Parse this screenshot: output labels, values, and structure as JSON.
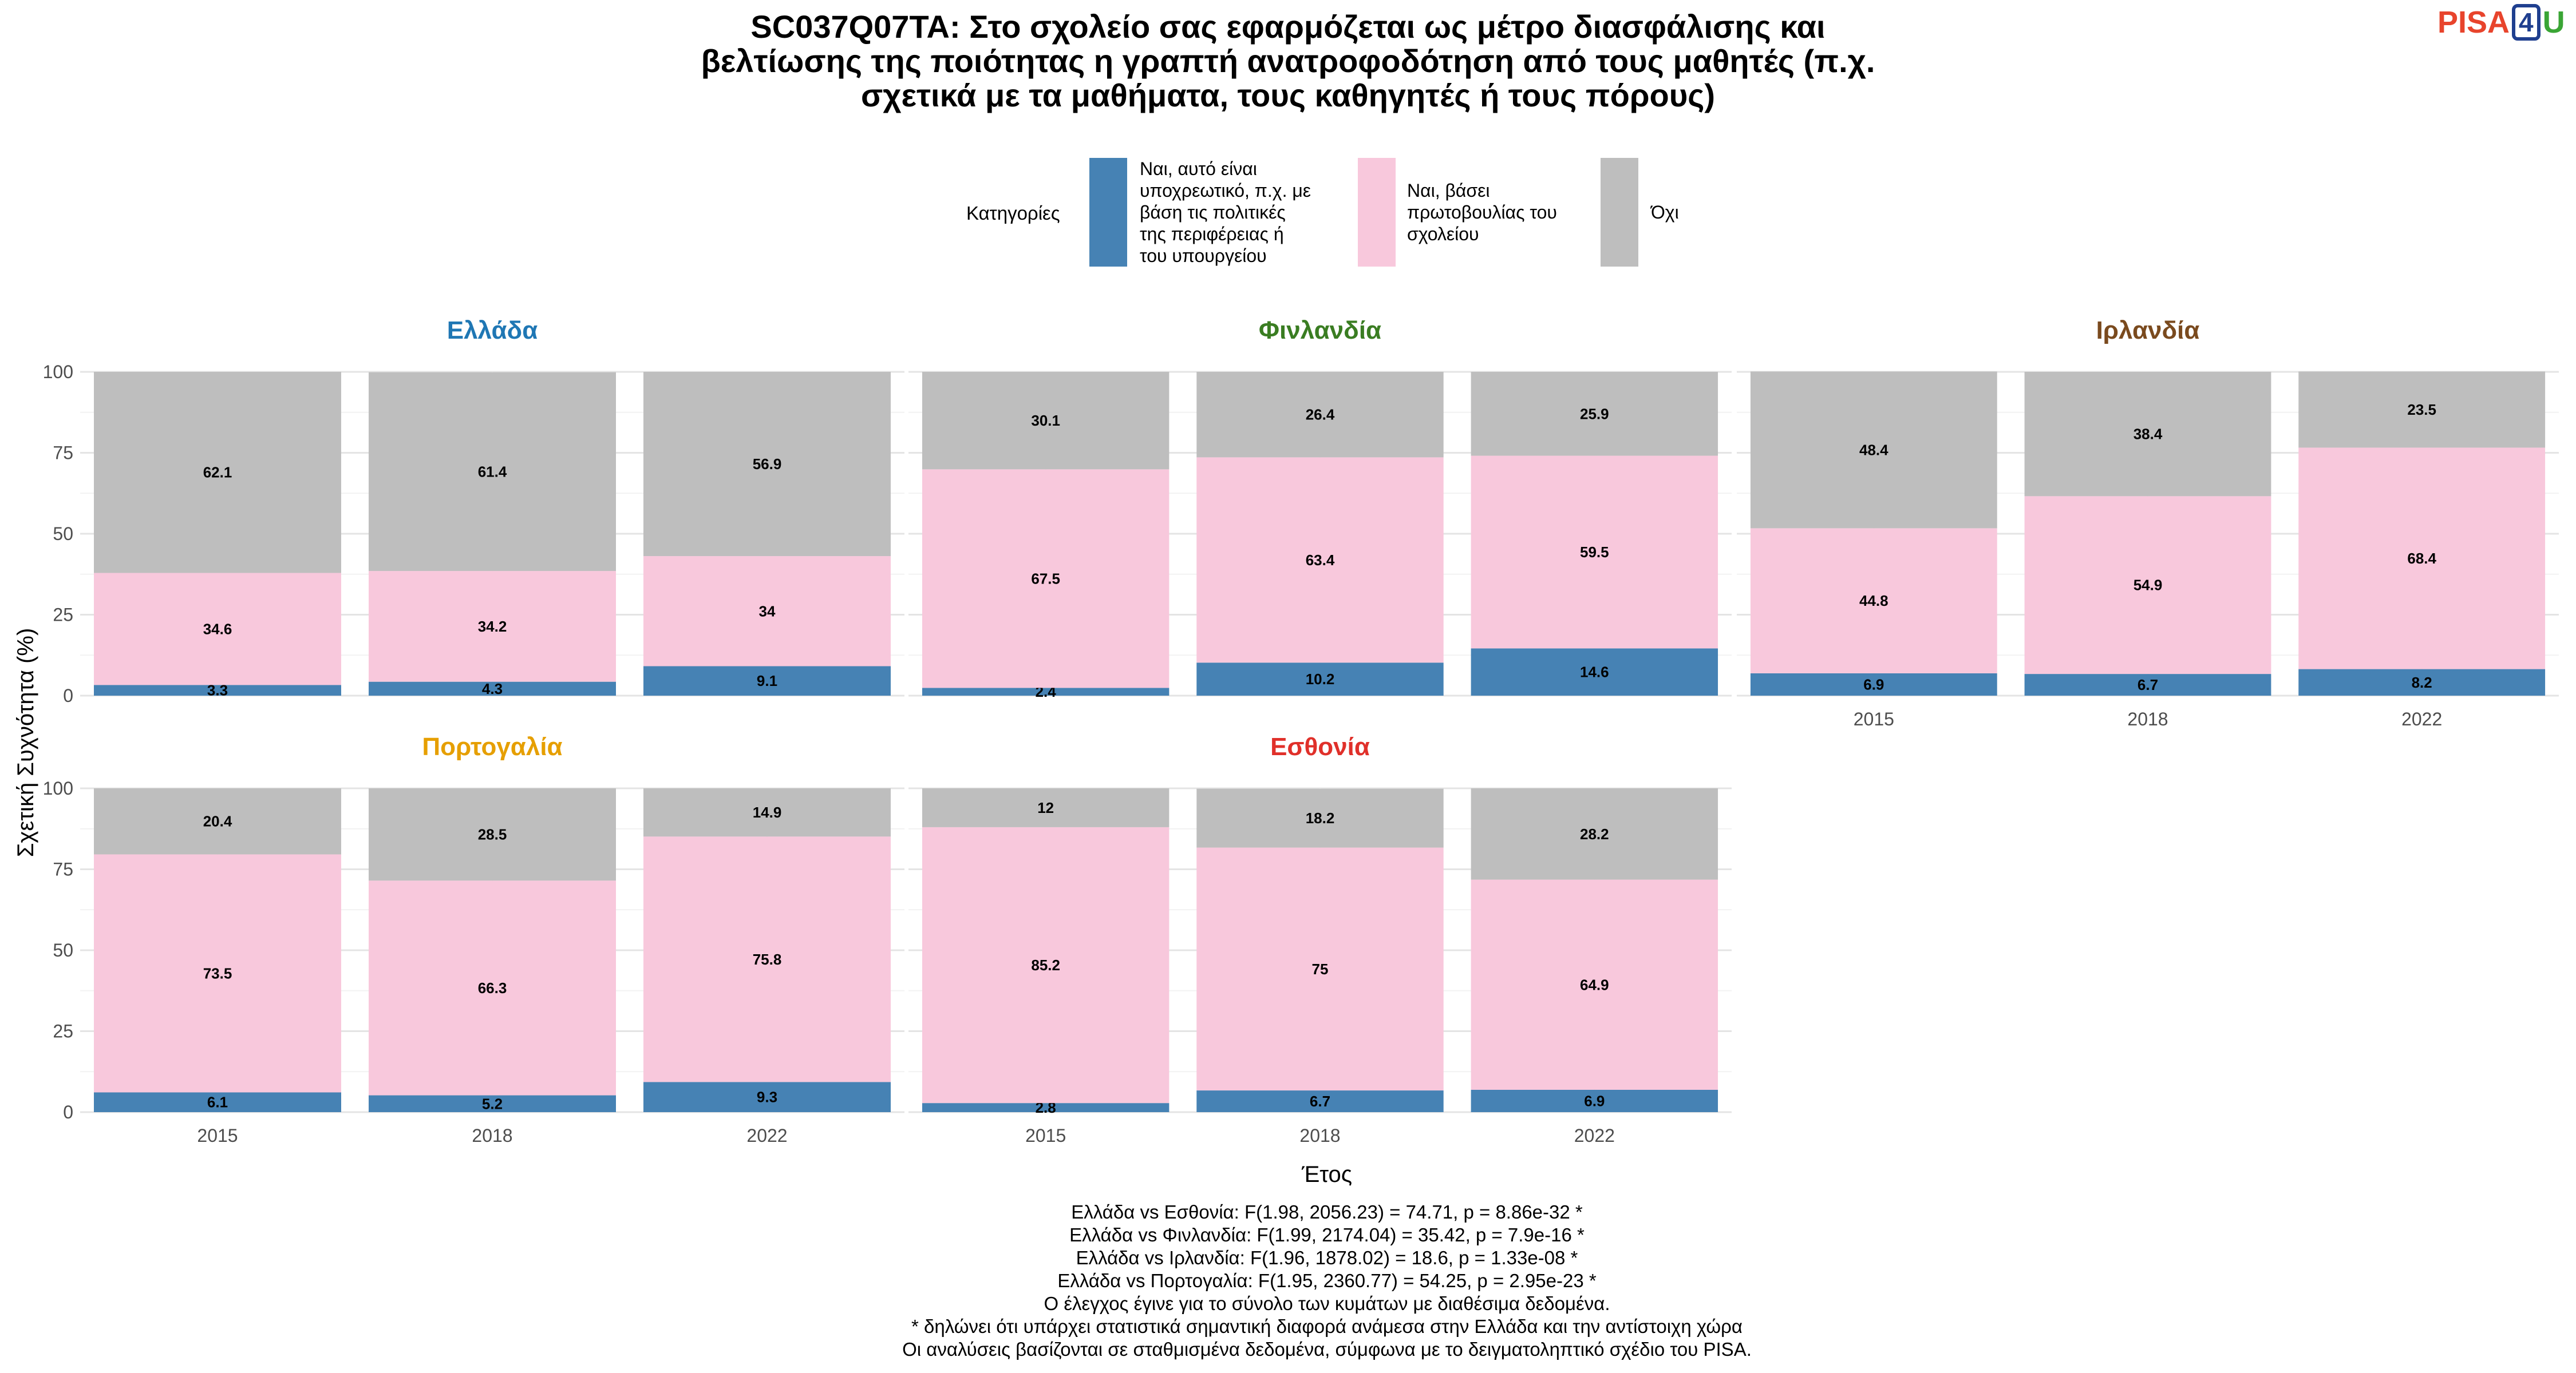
{
  "chart_data": {
    "type": "bar",
    "stacked": true,
    "title_lines": [
      "SC037Q07TA: Στο σχολείο σας εφαρμόζεται ως μέτρο διασφάλισης και",
      "βελτίωσης της ποιότητας η γραπτή ανατροφοδότηση από τους μαθητές (π.χ.",
      "σχετικά με τα μαθήματα, τους καθηγητές ή τους πόρους)"
    ],
    "legend": {
      "title": "Κατηγορίες",
      "placement": "top",
      "entries": [
        {
          "label_lines": [
            "Ναι, αυτό είναι",
            "υποχρεωτικό, π.χ. με",
            "βάση τις πολιτικές",
            "της περιφέρειας ή",
            "του υπουργείου"
          ],
          "color": "#4682b4"
        },
        {
          "label_lines": [
            "Ναι, βάσει",
            "πρωτοβουλίας του",
            "σχολείου"
          ],
          "color": "#f8c8dc"
        },
        {
          "label_lines": [
            "Όχι"
          ],
          "color": "#bebebe"
        }
      ]
    },
    "xlabel": "Έτος",
    "ylabel": "Σχετική Συχνότητα (%)",
    "ylim": [
      0,
      100
    ],
    "yticks": [
      "0",
      "25",
      "50",
      "75",
      "100"
    ],
    "categories": [
      "2015",
      "2018",
      "2022"
    ],
    "grid": true,
    "panels": [
      {
        "name": "Ελλάδα",
        "color": "#1f77b4",
        "series": [
          {
            "values": [
              3.3,
              4.3,
              9.1
            ],
            "labels": [
              "3.3",
              "4.3",
              "9.1"
            ]
          },
          {
            "values": [
              34.6,
              34.2,
              34
            ],
            "labels": [
              "34.6",
              "34.2",
              "34"
            ]
          },
          {
            "values": [
              62.1,
              61.4,
              56.9
            ],
            "labels": [
              "62.1",
              "61.4",
              "56.9"
            ]
          }
        ]
      },
      {
        "name": "Φινλανδία",
        "color": "#3a7d22",
        "series": [
          {
            "values": [
              2.4,
              10.2,
              14.6
            ],
            "labels": [
              "2.4",
              "10.2",
              "14.6"
            ]
          },
          {
            "values": [
              67.5,
              63.4,
              59.5
            ],
            "labels": [
              "67.5",
              "63.4",
              "59.5"
            ]
          },
          {
            "values": [
              30.1,
              26.4,
              25.9
            ],
            "labels": [
              "30.1",
              "26.4",
              "25.9"
            ]
          }
        ]
      },
      {
        "name": "Ιρλανδία",
        "color": "#7a4a1e",
        "series": [
          {
            "values": [
              6.9,
              6.7,
              8.2
            ],
            "labels": [
              "6.9",
              "6.7",
              "8.2"
            ]
          },
          {
            "values": [
              44.8,
              54.9,
              68.4
            ],
            "labels": [
              "44.8",
              "54.9",
              "68.4"
            ]
          },
          {
            "values": [
              48.4,
              38.4,
              23.5
            ],
            "labels": [
              "48.4",
              "38.4",
              "23.5"
            ]
          }
        ]
      },
      {
        "name": "Πορτογαλία",
        "color": "#e69f00",
        "series": [
          {
            "values": [
              6.1,
              5.2,
              9.3
            ],
            "labels": [
              "6.1",
              "5.2",
              "9.3"
            ]
          },
          {
            "values": [
              73.5,
              66.3,
              75.8
            ],
            "labels": [
              "73.5",
              "66.3",
              "75.8"
            ]
          },
          {
            "values": [
              20.4,
              28.5,
              14.9
            ],
            "labels": [
              "20.4",
              "28.5",
              "14.9"
            ]
          }
        ]
      },
      {
        "name": "Εσθονία",
        "color": "#e0302a",
        "series": [
          {
            "values": [
              2.8,
              6.7,
              6.9
            ],
            "labels": [
              "2.8",
              "6.7",
              "6.9"
            ]
          },
          {
            "values": [
              85.2,
              75,
              64.9
            ],
            "labels": [
              "85.2",
              "75",
              "64.9"
            ]
          },
          {
            "values": [
              12,
              18.2,
              28.2
            ],
            "labels": [
              "12",
              "18.2",
              "28.2"
            ]
          }
        ]
      }
    ],
    "caption_lines": [
      "Ελλάδα vs Εσθονία: F(1.98, 2056.23) = 74.71, p = 8.86e-32 *",
      "Ελλάδα vs Φινλανδία: F(1.99, 2174.04) = 35.42, p = 7.9e-16 *",
      "Ελλάδα vs Ιρλανδία: F(1.96, 1878.02) = 18.6, p = 1.33e-08 *",
      "Ελλάδα vs Πορτογαλία: F(1.95, 2360.77) = 54.25, p = 2.95e-23 *",
      "Ο έλεγχος έγινε για το σύνολο των κυμάτων με διαθέσιμα δεδομένα.",
      "* δηλώνει ότι υπάρχει στατιστικά σημαντική διαφορά ανάμεσα στην Ελλάδα και την αντίστοιχη χώρα",
      "Οι αναλύσεις βασίζονται σε σταθμισμένα δεδομένα, σύμφωνα με το δειγματοληπτικό σχέδιο του PISA."
    ]
  },
  "logo": {
    "part1": "PISA",
    "part2": "4",
    "part3": "U"
  }
}
